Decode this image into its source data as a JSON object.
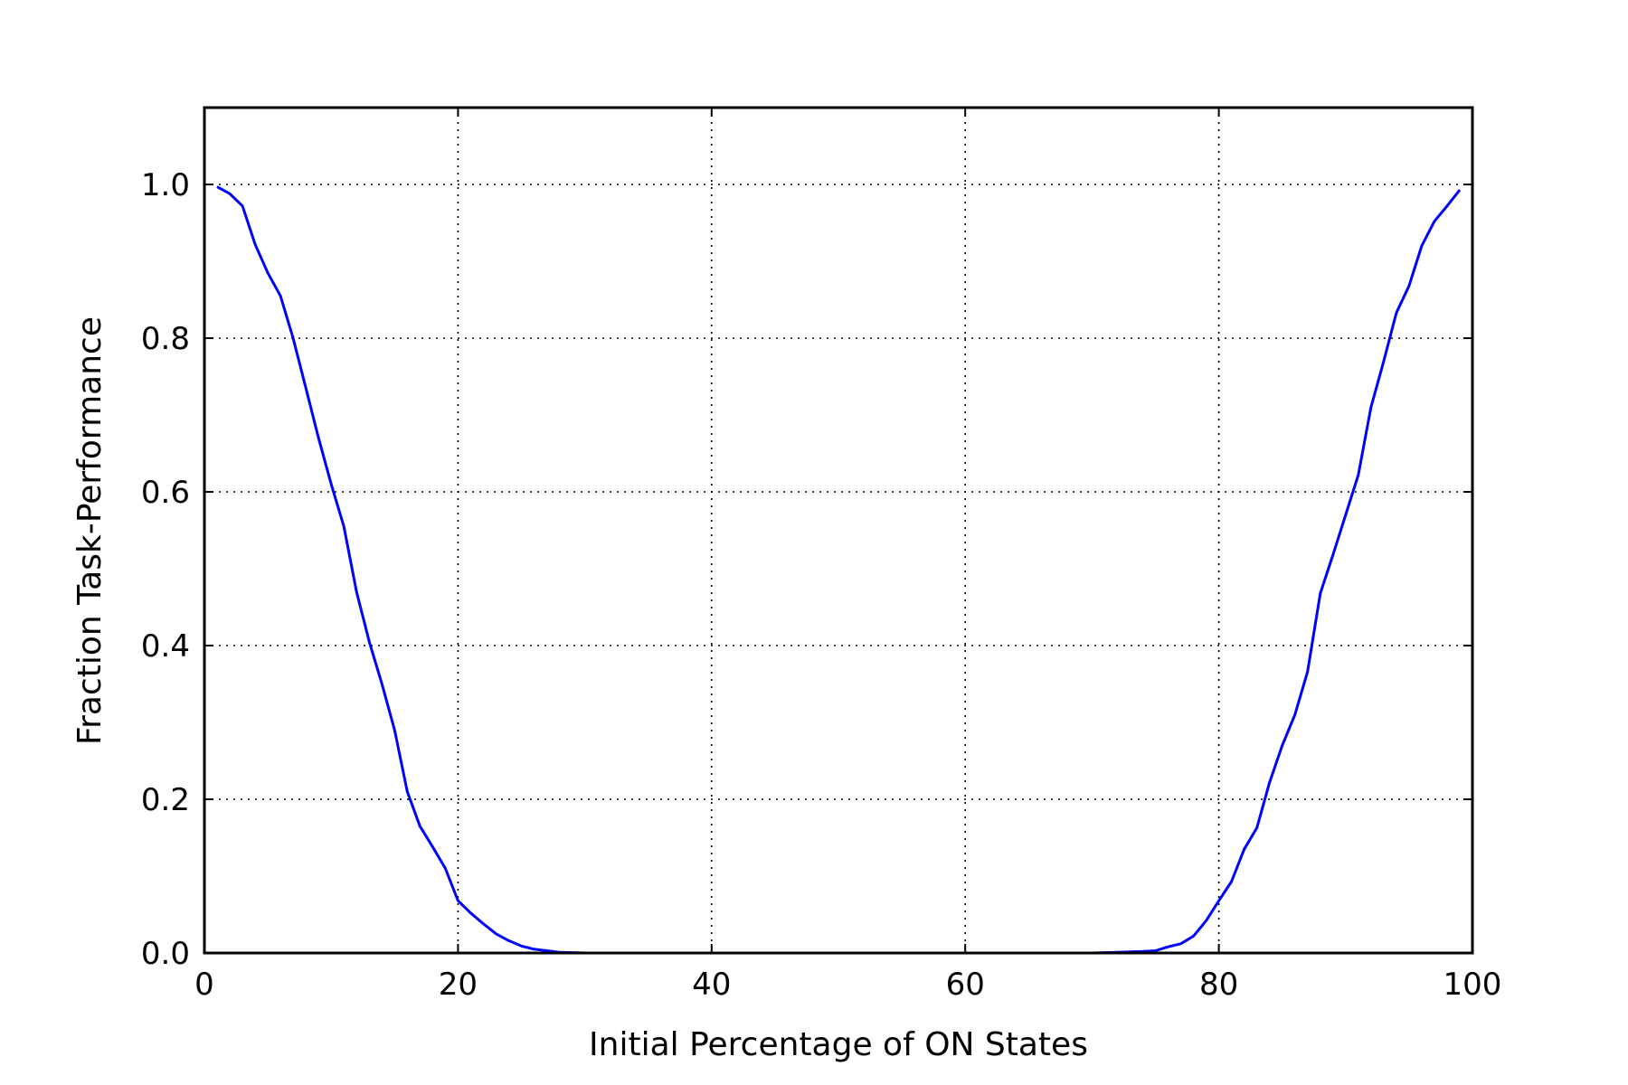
{
  "chart_data": {
    "type": "line",
    "title": "",
    "xlabel": "Initial Percentage of ON States",
    "ylabel": "Fraction Task-Performance",
    "xlim": [
      0,
      100
    ],
    "ylim": [
      0,
      1.1
    ],
    "xticks": [
      0,
      20,
      40,
      60,
      80,
      100
    ],
    "xtick_labels": [
      "0",
      "20",
      "40",
      "60",
      "80",
      "100"
    ],
    "yticks": [
      0,
      0.2,
      0.4,
      0.6,
      0.8,
      1.0
    ],
    "ytick_labels": [
      "0.0",
      "0.2",
      "0.4",
      "0.6",
      "0.8",
      "1.0"
    ],
    "grid": true,
    "series_color": "#0000ff",
    "series": [
      {
        "x": [
          1,
          2,
          3,
          4,
          5,
          6,
          7,
          8,
          9,
          10,
          11,
          12,
          13,
          14,
          15,
          16,
          17,
          18,
          19,
          20,
          21,
          22,
          23,
          24,
          25,
          26,
          27,
          28,
          29,
          30,
          35,
          40,
          45,
          50,
          55,
          60,
          65,
          70,
          72,
          74,
          75,
          76,
          77,
          78,
          79,
          80,
          81,
          82,
          83,
          84,
          85,
          86,
          87,
          88,
          89,
          90,
          91,
          92,
          93,
          94,
          95,
          96,
          97,
          98,
          99
        ],
        "y": [
          0.997,
          0.988,
          0.972,
          0.922,
          0.885,
          0.855,
          0.8,
          0.735,
          0.67,
          0.61,
          0.555,
          0.47,
          0.405,
          0.35,
          0.29,
          0.21,
          0.165,
          0.138,
          0.11,
          0.068,
          0.052,
          0.038,
          0.025,
          0.016,
          0.009,
          0.005,
          0.003,
          0.001,
          0.0005,
          0.0,
          0.0,
          0.0,
          0.0,
          0.0,
          0.0,
          0.0,
          0.0,
          0.0,
          0.001,
          0.002,
          0.003,
          0.008,
          0.012,
          0.022,
          0.042,
          0.068,
          0.093,
          0.135,
          0.163,
          0.222,
          0.27,
          0.31,
          0.366,
          0.468,
          0.518,
          0.57,
          0.622,
          0.71,
          0.77,
          0.833,
          0.868,
          0.92,
          0.952,
          0.972,
          0.993
        ]
      }
    ]
  }
}
